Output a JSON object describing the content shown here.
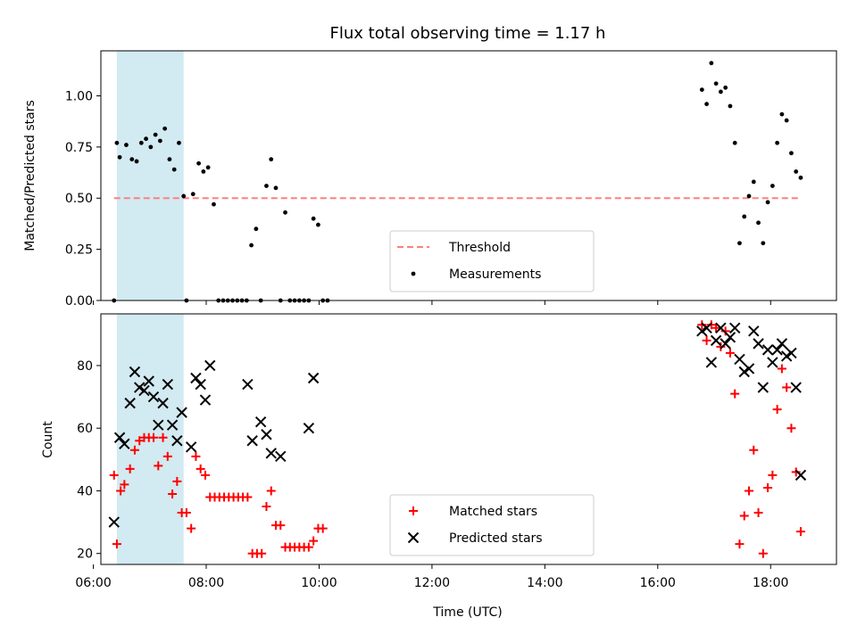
{
  "figure": {
    "title": "Flux total observing time = 1.17 h",
    "xlabel": "Time (UTC)"
  },
  "chart_data": [
    {
      "type": "scatter",
      "ylabel": "Matched/Predicted stars",
      "xlim": [
        "06:08",
        "19:10"
      ],
      "ylim": [
        0,
        1.22
      ],
      "yticks": [
        {
          "value": 0,
          "label": "0.00"
        },
        {
          "value": 0.25,
          "label": "0.25"
        },
        {
          "value": 0.5,
          "label": "0.50"
        },
        {
          "value": 0.75,
          "label": "0.75"
        },
        {
          "value": 1.0,
          "label": "1.00"
        }
      ],
      "shaded_region": {
        "x": [
          "06:25",
          "07:36"
        ],
        "color": "#add8e6"
      },
      "threshold": {
        "name": "Threshold",
        "y": 0.5,
        "x": [
          "06:22",
          "18:32"
        ],
        "color": "#ff7f7f"
      },
      "legend": {
        "location": "lower center",
        "entries": [
          "Threshold",
          "Measurements"
        ]
      },
      "series": [
        {
          "name": "Measurements",
          "color": "#000000",
          "points": [
            [
              "06:22",
              0.0
            ],
            [
              "06:25",
              0.77
            ],
            [
              "06:28",
              0.7
            ],
            [
              "06:35",
              0.76
            ],
            [
              "06:41",
              0.69
            ],
            [
              "06:46",
              0.68
            ],
            [
              "06:51",
              0.77
            ],
            [
              "06:56",
              0.79
            ],
            [
              "07:01",
              0.75
            ],
            [
              "07:06",
              0.81
            ],
            [
              "07:11",
              0.78
            ],
            [
              "07:16",
              0.84
            ],
            [
              "07:21",
              0.69
            ],
            [
              "07:26",
              0.64
            ],
            [
              "07:31",
              0.77
            ],
            [
              "07:36",
              0.51
            ],
            [
              "07:39",
              0.0
            ],
            [
              "07:46",
              0.52
            ],
            [
              "07:52",
              0.67
            ],
            [
              "07:57",
              0.63
            ],
            [
              "08:02",
              0.65
            ],
            [
              "08:08",
              0.47
            ],
            [
              "08:13",
              0.0
            ],
            [
              "08:18",
              0.0
            ],
            [
              "08:23",
              0.0
            ],
            [
              "08:28",
              0.0
            ],
            [
              "08:33",
              0.0
            ],
            [
              "08:38",
              0.0
            ],
            [
              "08:43",
              0.0
            ],
            [
              "08:48",
              0.27
            ],
            [
              "08:53",
              0.35
            ],
            [
              "08:58",
              0.0
            ],
            [
              "09:04",
              0.56
            ],
            [
              "09:09",
              0.69
            ],
            [
              "09:14",
              0.55
            ],
            [
              "09:19",
              0.0
            ],
            [
              "09:24",
              0.43
            ],
            [
              "09:29",
              0.0
            ],
            [
              "09:34",
              0.0
            ],
            [
              "09:39",
              0.0
            ],
            [
              "09:44",
              0.0
            ],
            [
              "09:49",
              0.0
            ],
            [
              "09:54",
              0.4
            ],
            [
              "09:59",
              0.37
            ],
            [
              "10:04",
              0.0
            ],
            [
              "10:09",
              0.0
            ],
            [
              "16:47",
              1.03
            ],
            [
              "16:52",
              0.96
            ],
            [
              "16:57",
              1.16
            ],
            [
              "17:02",
              1.06
            ],
            [
              "17:07",
              1.02
            ],
            [
              "17:12",
              1.04
            ],
            [
              "17:17",
              0.95
            ],
            [
              "17:22",
              0.77
            ],
            [
              "17:27",
              0.28
            ],
            [
              "17:32",
              0.41
            ],
            [
              "17:37",
              0.51
            ],
            [
              "17:42",
              0.58
            ],
            [
              "17:47",
              0.38
            ],
            [
              "17:52",
              0.28
            ],
            [
              "17:57",
              0.48
            ],
            [
              "18:02",
              0.56
            ],
            [
              "18:07",
              0.77
            ],
            [
              "18:12",
              0.91
            ],
            [
              "18:17",
              0.88
            ],
            [
              "18:22",
              0.72
            ],
            [
              "18:27",
              0.63
            ],
            [
              "18:32",
              0.6
            ]
          ]
        }
      ]
    },
    {
      "type": "scatter",
      "ylabel": "Count",
      "xlim": [
        "06:08",
        "19:10"
      ],
      "ylim": [
        16.5,
        96.5
      ],
      "yticks": [
        {
          "value": 20,
          "label": "20"
        },
        {
          "value": 40,
          "label": "40"
        },
        {
          "value": 60,
          "label": "60"
        },
        {
          "value": 80,
          "label": "80"
        }
      ],
      "xticks": [
        {
          "value": "06:00",
          "label": "06:00"
        },
        {
          "value": "08:00",
          "label": "08:00"
        },
        {
          "value": "10:00",
          "label": "10:00"
        },
        {
          "value": "12:00",
          "label": "12:00"
        },
        {
          "value": "14:00",
          "label": "14:00"
        },
        {
          "value": "16:00",
          "label": "16:00"
        },
        {
          "value": "18:00",
          "label": "18:00"
        }
      ],
      "shaded_region": {
        "x": [
          "06:25",
          "07:36"
        ],
        "color": "#add8e6"
      },
      "legend": {
        "location": "lower center",
        "entries": [
          "Matched stars",
          "Predicted stars"
        ]
      },
      "series": [
        {
          "name": "Matched stars",
          "marker": "plus",
          "color": "#ff0000",
          "points": [
            [
              "06:22",
              45
            ],
            [
              "06:25",
              23
            ],
            [
              "06:29",
              40
            ],
            [
              "06:33",
              42
            ],
            [
              "06:39",
              47
            ],
            [
              "06:44",
              53
            ],
            [
              "06:49",
              56
            ],
            [
              "06:54",
              57
            ],
            [
              "06:59",
              57
            ],
            [
              "07:04",
              57
            ],
            [
              "07:09",
              48
            ],
            [
              "07:14",
              57
            ],
            [
              "07:19",
              51
            ],
            [
              "07:24",
              39
            ],
            [
              "07:29",
              43
            ],
            [
              "07:34",
              33
            ],
            [
              "07:39",
              33
            ],
            [
              "07:44",
              28
            ],
            [
              "07:49",
              51
            ],
            [
              "07:54",
              47
            ],
            [
              "07:59",
              45
            ],
            [
              "08:04",
              38
            ],
            [
              "08:09",
              38
            ],
            [
              "08:14",
              38
            ],
            [
              "08:19",
              38
            ],
            [
              "08:24",
              38
            ],
            [
              "08:29",
              38
            ],
            [
              "08:34",
              38
            ],
            [
              "08:39",
              38
            ],
            [
              "08:44",
              38
            ],
            [
              "08:49",
              20
            ],
            [
              "08:54",
              20
            ],
            [
              "08:59",
              20
            ],
            [
              "09:04",
              35
            ],
            [
              "09:09",
              40
            ],
            [
              "09:14",
              29
            ],
            [
              "09:19",
              29
            ],
            [
              "09:24",
              22
            ],
            [
              "09:29",
              22
            ],
            [
              "09:34",
              22
            ],
            [
              "09:39",
              22
            ],
            [
              "09:44",
              22
            ],
            [
              "09:49",
              22
            ],
            [
              "09:54",
              24
            ],
            [
              "09:59",
              28
            ],
            [
              "10:04",
              28
            ],
            [
              "16:47",
              93
            ],
            [
              "16:52",
              88
            ],
            [
              "16:57",
              93
            ],
            [
              "17:02",
              92
            ],
            [
              "17:07",
              86
            ],
            [
              "17:12",
              91
            ],
            [
              "17:17",
              84
            ],
            [
              "17:22",
              71
            ],
            [
              "17:27",
              23
            ],
            [
              "17:32",
              32
            ],
            [
              "17:37",
              40
            ],
            [
              "17:42",
              53
            ],
            [
              "17:47",
              33
            ],
            [
              "17:52",
              20
            ],
            [
              "17:57",
              41
            ],
            [
              "18:02",
              45
            ],
            [
              "18:07",
              66
            ],
            [
              "18:12",
              79
            ],
            [
              "18:17",
              73
            ],
            [
              "18:22",
              60
            ],
            [
              "18:27",
              46
            ],
            [
              "18:32",
              27
            ]
          ]
        },
        {
          "name": "Predicted stars",
          "marker": "x",
          "color": "#000000",
          "points": [
            [
              "06:22",
              30
            ],
            [
              "06:28",
              57
            ],
            [
              "06:33",
              55
            ],
            [
              "06:39",
              68
            ],
            [
              "06:44",
              78
            ],
            [
              "06:49",
              73
            ],
            [
              "06:54",
              72
            ],
            [
              "06:59",
              75
            ],
            [
              "07:04",
              70
            ],
            [
              "07:09",
              61
            ],
            [
              "07:14",
              68
            ],
            [
              "07:19",
              74
            ],
            [
              "07:24",
              61
            ],
            [
              "07:29",
              56
            ],
            [
              "07:34",
              65
            ],
            [
              "07:44",
              54
            ],
            [
              "07:49",
              76
            ],
            [
              "07:54",
              74
            ],
            [
              "07:59",
              69
            ],
            [
              "08:04",
              80
            ],
            [
              "08:44",
              74
            ],
            [
              "08:49",
              56
            ],
            [
              "08:58",
              62
            ],
            [
              "09:04",
              58
            ],
            [
              "09:09",
              52
            ],
            [
              "09:19",
              51
            ],
            [
              "09:49",
              60
            ],
            [
              "09:54",
              76
            ],
            [
              "16:47",
              91
            ],
            [
              "16:52",
              92
            ],
            [
              "16:57",
              81
            ],
            [
              "17:02",
              88
            ],
            [
              "17:07",
              92
            ],
            [
              "17:12",
              87
            ],
            [
              "17:17",
              89
            ],
            [
              "17:22",
              92
            ],
            [
              "17:27",
              82
            ],
            [
              "17:32",
              78
            ],
            [
              "17:37",
              79
            ],
            [
              "17:42",
              91
            ],
            [
              "17:47",
              87
            ],
            [
              "17:52",
              73
            ],
            [
              "17:57",
              85
            ],
            [
              "18:02",
              81
            ],
            [
              "18:07",
              85
            ],
            [
              "18:12",
              87
            ],
            [
              "18:17",
              83
            ],
            [
              "18:22",
              84
            ],
            [
              "18:27",
              73
            ],
            [
              "18:32",
              45
            ]
          ]
        }
      ]
    }
  ]
}
